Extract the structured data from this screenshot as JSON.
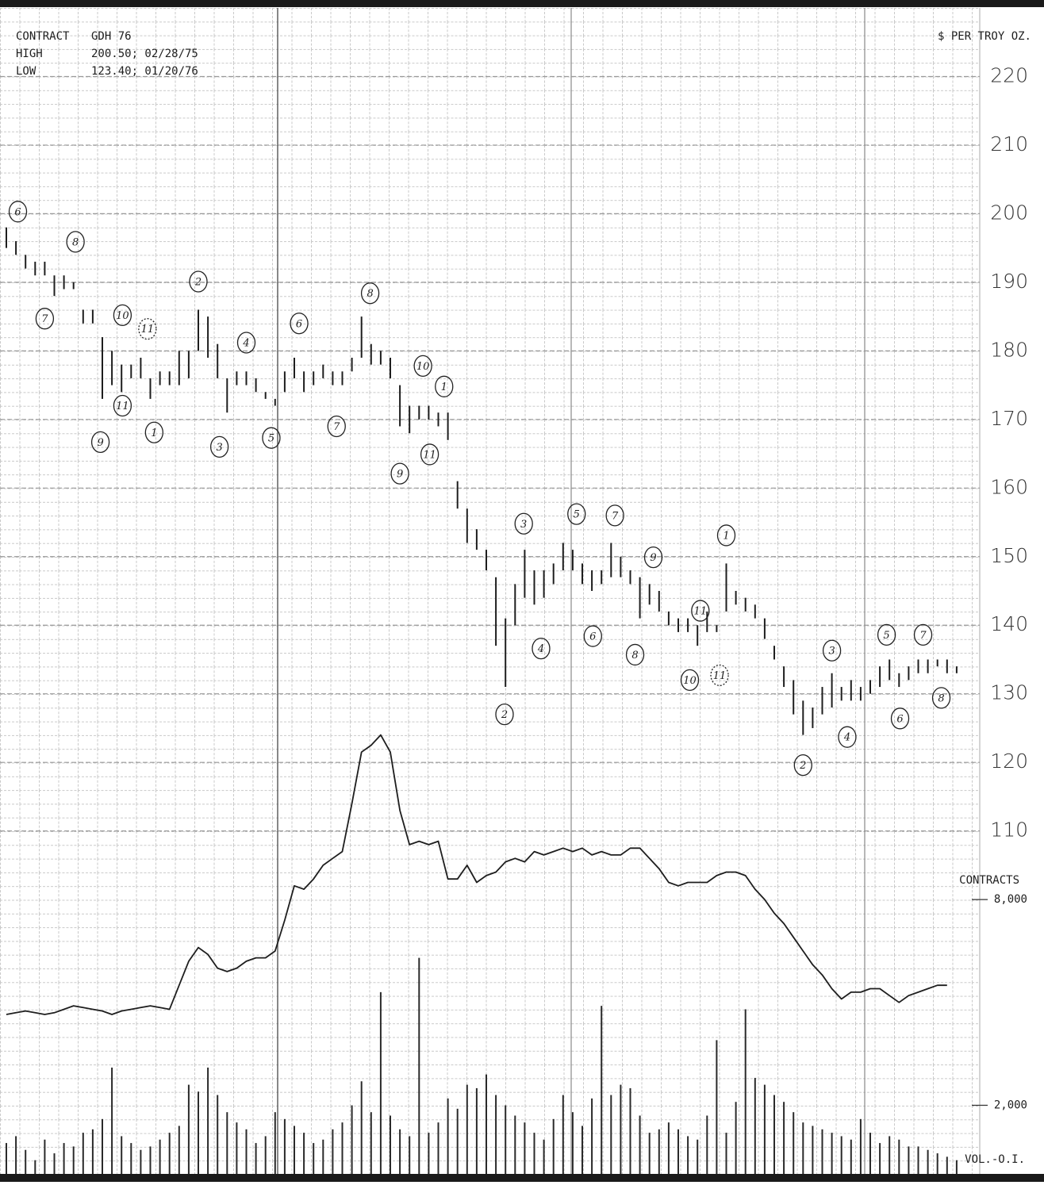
{
  "chart_data": [
    {
      "type": "range",
      "color": "#1e1e1e",
      "notes": [
        [
          "CONTRACT",
          "GDH 76"
        ],
        [
          "HIGH",
          "200.50; 02/28/75"
        ],
        [
          "LOW",
          "123.40; 01/20/76"
        ]
      ],
      "ylabel": "$ PER TROY OZ.",
      "ylim": [
        60,
        230
      ],
      "yticks": [
        110,
        120,
        130,
        140,
        150,
        160,
        170,
        180,
        190,
        200,
        210,
        220
      ],
      "grid": true,
      "high": [
        198,
        196,
        194,
        193,
        193,
        191,
        191,
        190,
        186,
        186,
        182,
        180,
        178,
        178,
        179,
        176,
        177,
        177,
        180,
        180,
        186,
        185,
        181,
        176,
        177,
        177,
        176,
        174,
        173,
        177,
        179,
        177,
        177,
        178,
        177,
        177,
        179,
        185,
        181,
        180,
        179,
        175,
        172,
        172,
        172,
        171,
        171,
        161,
        157,
        154,
        151,
        147,
        141,
        146,
        151,
        148,
        148,
        149,
        152,
        151,
        149,
        148,
        148,
        152,
        150,
        148,
        147,
        146,
        145,
        142,
        141,
        141,
        140,
        142,
        140,
        149,
        145,
        144,
        143,
        141,
        137,
        134,
        132,
        129,
        128,
        131,
        133,
        131,
        132,
        131,
        132,
        134,
        135,
        133,
        134,
        135,
        135,
        135,
        135,
        134
      ],
      "low": [
        195,
        194,
        192,
        191,
        191,
        188,
        189,
        189,
        184,
        184,
        173,
        175,
        174,
        176,
        176,
        173,
        175,
        175,
        175,
        176,
        180,
        179,
        176,
        171,
        175,
        175,
        174,
        173,
        172,
        174,
        176,
        174,
        175,
        176,
        175,
        175,
        177,
        179,
        178,
        178,
        176,
        169,
        168,
        170,
        170,
        169,
        167,
        157,
        152,
        151,
        148,
        137,
        131,
        140,
        144,
        143,
        144,
        146,
        148,
        148,
        146,
        145,
        146,
        147,
        147,
        146,
        141,
        143,
        142,
        140,
        139,
        139,
        137,
        139,
        139,
        142,
        143,
        142,
        141,
        138,
        135,
        131,
        127,
        124,
        125,
        127,
        128,
        129,
        129,
        129,
        130,
        131,
        132,
        131,
        132,
        133,
        133,
        134,
        133,
        133
      ],
      "annotations": [
        {
          "text": "6",
          "x": 1.2,
          "y": 200.3
        },
        {
          "text": "8",
          "x": 7.2,
          "y": 195.9
        },
        {
          "text": "7",
          "x": 4,
          "y": 184.7
        },
        {
          "text": "10",
          "x": 12.1,
          "y": 185.2
        },
        {
          "text": "11",
          "x": 14.7,
          "y": 183.2,
          "dashed": true
        },
        {
          "text": "2",
          "x": 20,
          "y": 190.1
        },
        {
          "text": "4",
          "x": 25,
          "y": 181.2
        },
        {
          "text": "6",
          "x": 30.5,
          "y": 184
        },
        {
          "text": "8",
          "x": 37.9,
          "y": 188.4
        },
        {
          "text": "10",
          "x": 43.4,
          "y": 177.8
        },
        {
          "text": "1",
          "x": 45.6,
          "y": 174.8
        },
        {
          "text": "11",
          "x": 12.1,
          "y": 172
        },
        {
          "text": "9",
          "x": 9.8,
          "y": 166.7
        },
        {
          "text": "1",
          "x": 15.4,
          "y": 168.1
        },
        {
          "text": "3",
          "x": 22.2,
          "y": 166
        },
        {
          "text": "5",
          "x": 27.6,
          "y": 167.3
        },
        {
          "text": "7",
          "x": 34.4,
          "y": 169
        },
        {
          "text": "9",
          "x": 41,
          "y": 162.1
        },
        {
          "text": "11",
          "x": 44.1,
          "y": 164.9
        },
        {
          "text": "3",
          "x": 53.9,
          "y": 154.8
        },
        {
          "text": "5",
          "x": 59.4,
          "y": 156.2
        },
        {
          "text": "7",
          "x": 63.4,
          "y": 156
        },
        {
          "text": "9",
          "x": 67.4,
          "y": 149.9
        },
        {
          "text": "1",
          "x": 75,
          "y": 153.1
        },
        {
          "text": "11",
          "x": 72.3,
          "y": 142.1
        },
        {
          "text": "4",
          "x": 55.7,
          "y": 136.6
        },
        {
          "text": "6",
          "x": 61.1,
          "y": 138.4
        },
        {
          "text": "8",
          "x": 65.5,
          "y": 135.7
        },
        {
          "text": "10",
          "x": 71.2,
          "y": 132
        },
        {
          "text": "11",
          "x": 74.3,
          "y": 132.7,
          "dashed": true
        },
        {
          "text": "2",
          "x": 51.9,
          "y": 127
        },
        {
          "text": "3",
          "x": 86,
          "y": 136.3
        },
        {
          "text": "5",
          "x": 91.7,
          "y": 138.6
        },
        {
          "text": "7",
          "x": 95.5,
          "y": 138.6
        },
        {
          "text": "4",
          "x": 87.6,
          "y": 123.7
        },
        {
          "text": "6",
          "x": 93.1,
          "y": 126.4
        },
        {
          "text": "8",
          "x": 97.4,
          "y": 129.4
        },
        {
          "text": "2",
          "x": 83,
          "y": 119.6
        }
      ]
    },
    {
      "type": "bar",
      "color": "#2a2a2a",
      "ylabel": "CONTRACTS",
      "xlabel": "VOL.-O.I.",
      "ylim": [
        0,
        34000
      ],
      "yticks": [
        {
          "value": 2000,
          "label": "2,000"
        },
        {
          "value": 8000,
          "label": "8,000"
        }
      ],
      "values": [
        900,
        1100,
        700,
        400,
        1000,
        600,
        900,
        800,
        1200,
        1300,
        1600,
        3100,
        1100,
        900,
        700,
        800,
        1000,
        1200,
        1400,
        2600,
        2400,
        3100,
        2300,
        1800,
        1500,
        1300,
        900,
        1100,
        1800,
        1600,
        1400,
        1200,
        900,
        1000,
        1300,
        1500,
        2000,
        2700,
        1800,
        5300,
        1700,
        1300,
        1100,
        6300,
        1200,
        1500,
        2200,
        1900,
        2600,
        2500,
        2900,
        2300,
        2000,
        1700,
        1500,
        1200,
        1000,
        1600,
        2300,
        1800,
        1400,
        2200,
        4900,
        2300,
        2600,
        2500,
        1700,
        1200,
        1300,
        1500,
        1300,
        1100,
        1000,
        1700,
        3900,
        1200,
        2100,
        4800,
        2800,
        2600,
        2300,
        2100,
        1800,
        1500,
        1400,
        1300,
        1200,
        1100,
        1000,
        1600,
        1200,
        900,
        1100,
        1000,
        800,
        800,
        700,
        600,
        500,
        400
      ]
    },
    {
      "type": "line",
      "color": "#1e1e1e",
      "ylim": [
        0,
        34000
      ],
      "values": [
        4650,
        4700,
        4750,
        4700,
        4650,
        4700,
        4800,
        4900,
        4850,
        4800,
        4750,
        4650,
        4750,
        4800,
        4850,
        4900,
        4850,
        4800,
        5500,
        6200,
        6600,
        6400,
        6000,
        5900,
        6000,
        6200,
        6300,
        6300,
        6500,
        7400,
        8400,
        8300,
        8600,
        9000,
        9200,
        9400,
        10800,
        12300,
        12500,
        12800,
        12300,
        10600,
        9600,
        9700,
        9600,
        9700,
        8600,
        8600,
        9000,
        8500,
        8700,
        8800,
        9100,
        9200,
        9100,
        9400,
        9300,
        9400,
        9500,
        9400,
        9500,
        9300,
        9400,
        9300,
        9300,
        9500,
        9500,
        9200,
        8900,
        8500,
        8400,
        8500,
        8500,
        8500,
        8700,
        8800,
        8800,
        8700,
        8300,
        8000,
        7600,
        7300,
        6900,
        6500,
        6100,
        5800,
        5400,
        5100,
        5300,
        5300,
        5400,
        5400,
        5200,
        5000,
        5200,
        5300,
        5400,
        5500,
        5500,
        null
      ]
    }
  ]
}
